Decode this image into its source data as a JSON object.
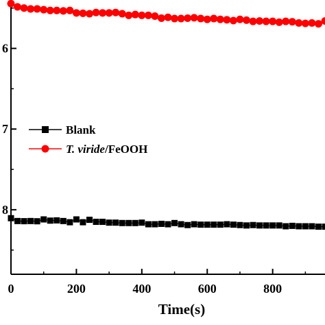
{
  "chart_data": {
    "type": "scatter",
    "title": "",
    "xlabel": "Time(s)",
    "ylabel": "",
    "xlim": [
      0,
      960
    ],
    "ylim": [
      -0.88,
      -0.54
    ],
    "x_ticks": [
      0,
      200,
      400,
      600,
      800
    ],
    "x_tick_labels": [
      "0",
      "200",
      "400",
      "600",
      "800"
    ],
    "y_ticks": [
      -0.6,
      -0.7,
      -0.8
    ],
    "y_tick_labels": [
      "6",
      "7",
      "8"
    ],
    "grid": false,
    "legend_position": "center-left",
    "series": [
      {
        "name": "Blank",
        "marker": "square",
        "color": "#000000",
        "x": [
          0,
          20,
          40,
          60,
          80,
          100,
          120,
          140,
          160,
          180,
          200,
          220,
          240,
          260,
          280,
          300,
          320,
          340,
          360,
          380,
          400,
          420,
          440,
          460,
          480,
          500,
          520,
          540,
          560,
          580,
          600,
          620,
          640,
          660,
          680,
          700,
          720,
          740,
          760,
          780,
          800,
          820,
          840,
          860,
          880,
          900,
          920,
          940,
          960
        ],
        "y": [
          -0.8105,
          -0.814,
          -0.8142,
          -0.814,
          -0.8143,
          -0.812,
          -0.8135,
          -0.8132,
          -0.814,
          -0.8155,
          -0.812,
          -0.8155,
          -0.8125,
          -0.815,
          -0.815,
          -0.816,
          -0.816,
          -0.8165,
          -0.8165,
          -0.8165,
          -0.816,
          -0.818,
          -0.818,
          -0.8175,
          -0.818,
          -0.8165,
          -0.818,
          -0.819,
          -0.818,
          -0.8185,
          -0.8185,
          -0.8185,
          -0.8185,
          -0.818,
          -0.8185,
          -0.819,
          -0.8195,
          -0.819,
          -0.8195,
          -0.8195,
          -0.8195,
          -0.8195,
          -0.8205,
          -0.82,
          -0.8205,
          -0.8205,
          -0.8205,
          -0.821,
          -0.821
        ]
      },
      {
        "name": "T. viride/FeOOH",
        "marker": "circle",
        "color": "#ff0000",
        "x": [
          0,
          20,
          40,
          60,
          80,
          100,
          120,
          140,
          160,
          180,
          200,
          220,
          240,
          260,
          280,
          300,
          320,
          340,
          360,
          380,
          400,
          420,
          440,
          460,
          480,
          500,
          520,
          540,
          560,
          580,
          600,
          620,
          640,
          660,
          680,
          700,
          720,
          740,
          760,
          780,
          800,
          820,
          840,
          860,
          880,
          900,
          920,
          940,
          960
        ],
        "y": [
          -0.5445,
          -0.5485,
          -0.55,
          -0.551,
          -0.551,
          -0.552,
          -0.553,
          -0.553,
          -0.5535,
          -0.553,
          -0.556,
          -0.5565,
          -0.557,
          -0.5555,
          -0.556,
          -0.556,
          -0.5555,
          -0.557,
          -0.559,
          -0.558,
          -0.559,
          -0.559,
          -0.56,
          -0.5625,
          -0.5615,
          -0.563,
          -0.563,
          -0.5625,
          -0.562,
          -0.563,
          -0.564,
          -0.563,
          -0.564,
          -0.5645,
          -0.5655,
          -0.564,
          -0.565,
          -0.5665,
          -0.566,
          -0.5665,
          -0.5665,
          -0.5675,
          -0.5665,
          -0.567,
          -0.5685,
          -0.569,
          -0.5685,
          -0.5695,
          -0.566
        ]
      }
    ]
  }
}
